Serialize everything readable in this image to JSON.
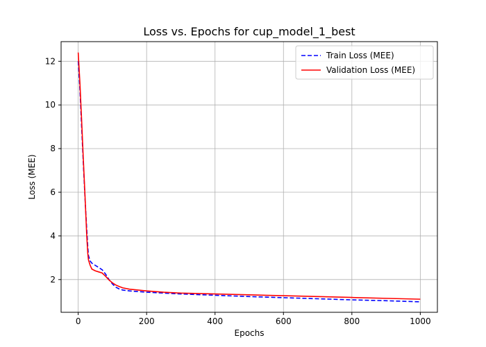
{
  "chart_data": {
    "type": "line",
    "title": "Loss vs. Epochs for cup_model_1_best",
    "xlabel": "Epochs",
    "ylabel": "Loss (MEE)",
    "xlim": [
      -50,
      1050
    ],
    "ylim": [
      0.5,
      12.9
    ],
    "xticks": [
      0,
      200,
      400,
      600,
      800,
      1000
    ],
    "yticks": [
      2,
      4,
      6,
      8,
      10,
      12
    ],
    "grid": true,
    "legend_position": "upper-right",
    "series": [
      {
        "name": "Train Loss (MEE)",
        "color": "#0000ff",
        "dash": "dashed",
        "x": [
          0,
          5,
          10,
          15,
          20,
          25,
          28,
          30,
          35,
          40,
          50,
          60,
          70,
          80,
          90,
          100,
          110,
          120,
          130,
          150,
          200,
          250,
          300,
          400,
          500,
          600,
          700,
          800,
          900,
          1000
        ],
        "y": [
          12.0,
          10.7,
          9.0,
          7.3,
          5.7,
          4.3,
          3.5,
          3.1,
          2.85,
          2.75,
          2.65,
          2.55,
          2.45,
          2.25,
          2.0,
          1.8,
          1.65,
          1.57,
          1.52,
          1.48,
          1.42,
          1.38,
          1.34,
          1.28,
          1.22,
          1.17,
          1.12,
          1.07,
          1.03,
          0.98
        ]
      },
      {
        "name": "Validation Loss (MEE)",
        "color": "#ff0000",
        "dash": "solid",
        "x": [
          0,
          5,
          10,
          15,
          20,
          25,
          28,
          30,
          35,
          40,
          50,
          60,
          70,
          80,
          90,
          100,
          110,
          120,
          130,
          150,
          200,
          250,
          300,
          400,
          500,
          600,
          700,
          800,
          900,
          1000
        ],
        "y": [
          12.4,
          11.0,
          9.3,
          7.5,
          5.8,
          4.0,
          3.2,
          2.9,
          2.65,
          2.48,
          2.4,
          2.35,
          2.3,
          2.15,
          1.98,
          1.85,
          1.75,
          1.68,
          1.62,
          1.56,
          1.48,
          1.42,
          1.38,
          1.34,
          1.3,
          1.26,
          1.22,
          1.18,
          1.14,
          1.1
        ]
      }
    ]
  }
}
